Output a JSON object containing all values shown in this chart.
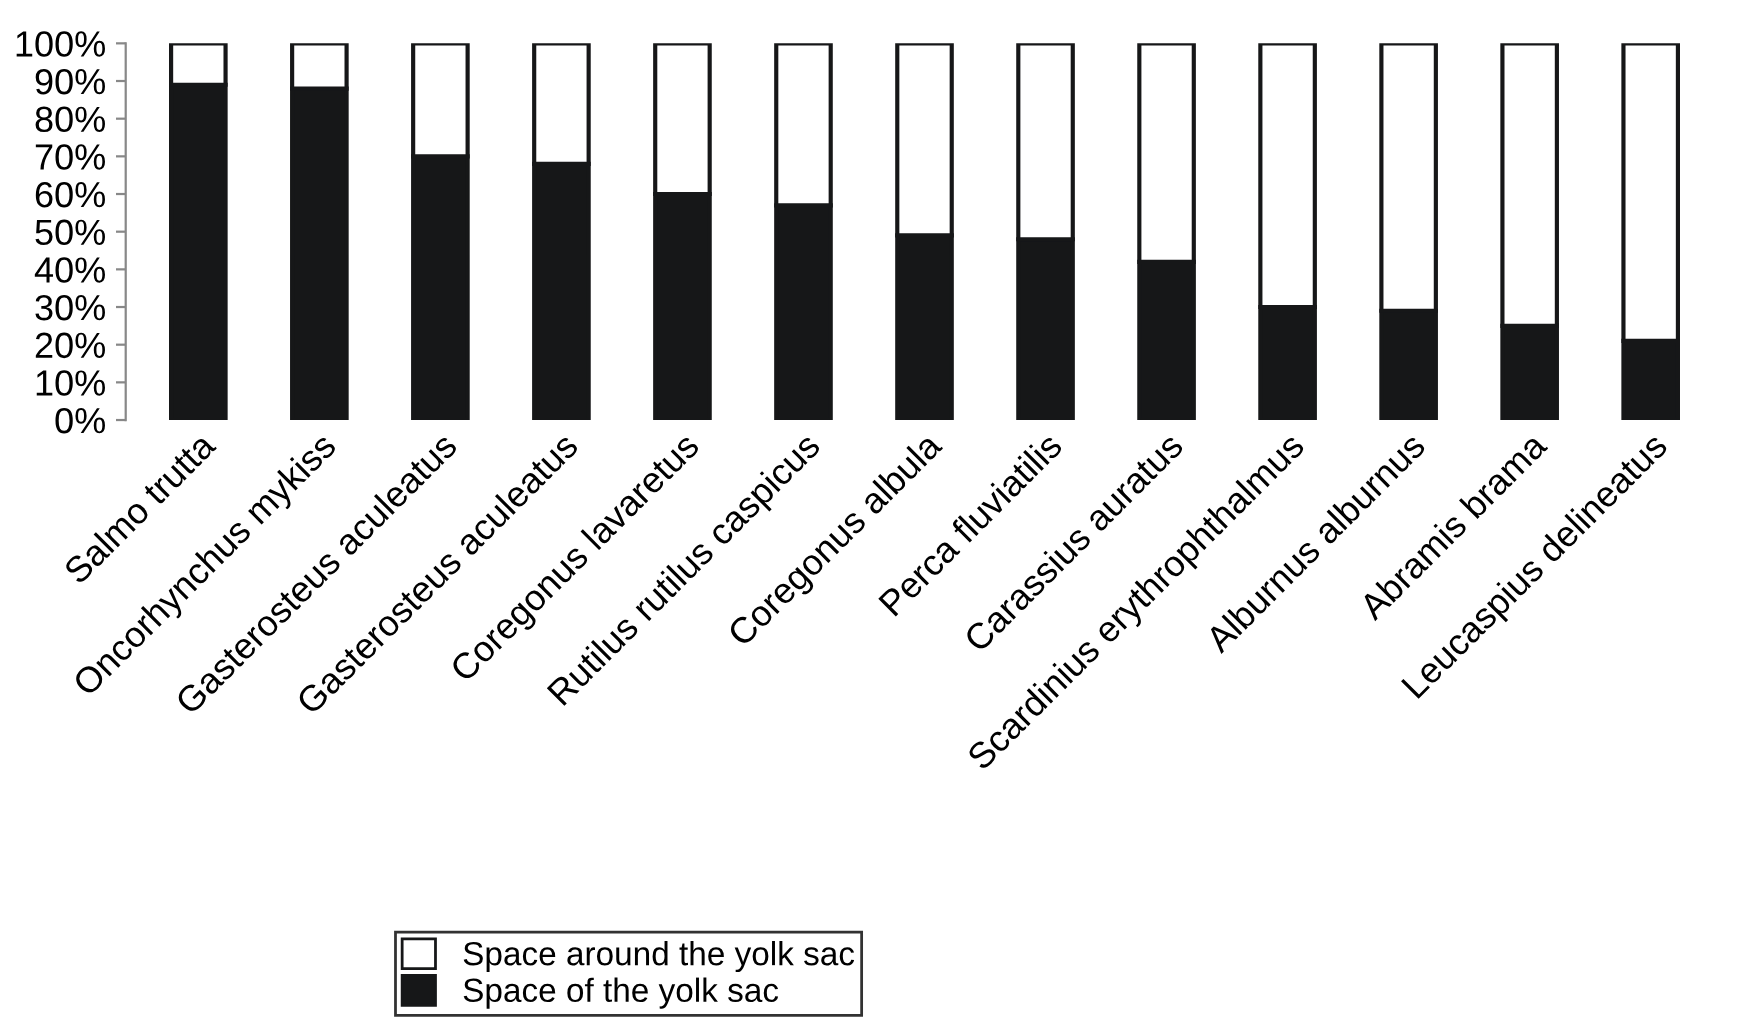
{
  "chart_data": {
    "type": "bar",
    "stacked": true,
    "categories": [
      "Salmo trutta",
      "Oncorhynchus mykiss",
      "Gasterosteus aculeatus",
      "Gasterosteus aculeatus",
      "Coregonus lavaretus",
      "Rutilus rutilus caspicus",
      "Coregonus albula",
      "Perca fluviatilis",
      "Carassius auratus",
      "Scardinius erythrophthalmus",
      "Alburnus alburnus",
      "Abramis brama",
      "Leucaspius delineatus"
    ],
    "series": [
      {
        "name": "Space of the yolk sac",
        "color": "#161718",
        "values": [
          89,
          88,
          70,
          68,
          60,
          57,
          49,
          48,
          42,
          30,
          29,
          25,
          21
        ]
      },
      {
        "name": "Space around the yolk sac",
        "color": "#ffffff",
        "values": [
          11,
          12,
          30,
          32,
          40,
          43,
          51,
          52,
          58,
          70,
          71,
          75,
          79
        ]
      }
    ],
    "ylim": [
      0,
      100
    ],
    "yticks": [
      {
        "value": 0,
        "label": "0%"
      },
      {
        "value": 10,
        "label": "10%"
      },
      {
        "value": 20,
        "label": "20%"
      },
      {
        "value": 30,
        "label": "30%"
      },
      {
        "value": 40,
        "label": "40%"
      },
      {
        "value": 50,
        "label": "50%"
      },
      {
        "value": 60,
        "label": "60%"
      },
      {
        "value": 70,
        "label": "70%"
      },
      {
        "value": 80,
        "label": "80%"
      },
      {
        "value": 90,
        "label": "90%"
      },
      {
        "value": 100,
        "label": "100%"
      }
    ],
    "grid": false,
    "legend": "bottom"
  }
}
